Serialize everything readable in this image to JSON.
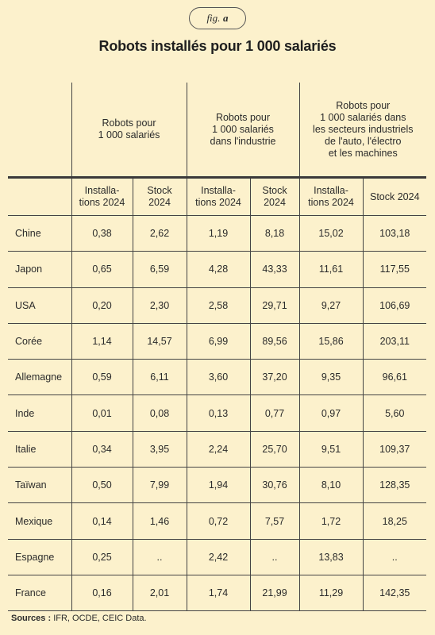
{
  "figure": {
    "label_word": "fig.",
    "label_letter": "a"
  },
  "title": "Robots installés pour 1 000 salariés",
  "group_headers": [
    "Robots pour\n1 000 salariés",
    "Robots pour\n1 000 salariés\ndans l'industrie",
    "Robots pour\n1 000 salariés dans\nles secteurs industriels\nde l'auto, l'électro\net les machines"
  ],
  "sub_headers": [
    "Installa-\ntions 2024",
    "Stock\n2024",
    "Installa-\ntions 2024",
    "Stock\n2024",
    "Installa-\ntions 2024",
    "Stock 2024"
  ],
  "rows": [
    {
      "country": "Chine",
      "values": [
        "0,38",
        "2,62",
        "1,19",
        "8,18",
        "15,02",
        "103,18"
      ]
    },
    {
      "country": "Japon",
      "values": [
        "0,65",
        "6,59",
        "4,28",
        "43,33",
        "11,61",
        "117,55"
      ]
    },
    {
      "country": "USA",
      "values": [
        "0,20",
        "2,30",
        "2,58",
        "29,71",
        "9,27",
        "106,69"
      ]
    },
    {
      "country": "Corée",
      "values": [
        "1,14",
        "14,57",
        "6,99",
        "89,56",
        "15,86",
        "203,11"
      ]
    },
    {
      "country": "Allemagne",
      "values": [
        "0,59",
        "6,11",
        "3,60",
        "37,20",
        "9,35",
        "96,61"
      ]
    },
    {
      "country": "Inde",
      "values": [
        "0,01",
        "0,08",
        "0,13",
        "0,77",
        "0,97",
        "5,60"
      ]
    },
    {
      "country": "Italie",
      "values": [
        "0,34",
        "3,95",
        "2,24",
        "25,70",
        "9,51",
        "109,37"
      ]
    },
    {
      "country": "Taïwan",
      "values": [
        "0,50",
        "7,99",
        "1,94",
        "30,76",
        "8,10",
        "128,35"
      ]
    },
    {
      "country": "Mexique",
      "values": [
        "0,14",
        "1,46",
        "0,72",
        "7,57",
        "1,72",
        "18,25"
      ]
    },
    {
      "country": "Espagne",
      "values": [
        "0,25",
        "..",
        "2,42",
        "..",
        "13,83",
        ".."
      ]
    },
    {
      "country": "France",
      "values": [
        "0,16",
        "2,01",
        "1,74",
        "21,99",
        "11,29",
        "142,35"
      ]
    }
  ],
  "sources": {
    "label": "Sources :",
    "text": "IFR, OCDE, CEIC Data."
  }
}
